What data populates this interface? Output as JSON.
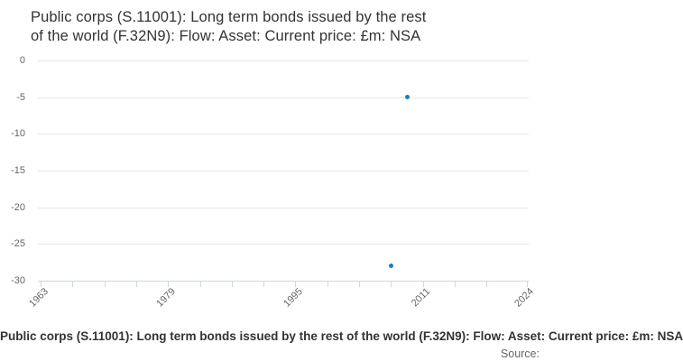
{
  "title_lines": [
    "Public corps (S.11001): Long term bonds issued by the rest",
    "of the world (F.32N9): Flow: Asset: Current price: £m: NSA"
  ],
  "legend": {
    "label": "Public corps (S.11001): Long term bonds issued by the rest of the world (F.32N9): Flow: Asset: Current price: £m: NSA"
  },
  "source": {
    "label": "Source:"
  },
  "colors": {
    "point": "#1380c4",
    "gridline": "#e6e6e6",
    "axis_line": "#ccd6eb",
    "tick": "#ccd6eb",
    "title_text": "#333333",
    "axis_label_text": "#666666",
    "legend_text": "#333333",
    "source_text": "#666666",
    "background": "#ffffff"
  },
  "chart_data": {
    "type": "scatter",
    "title": "Public corps (S.11001): Long term bonds issued by the rest of the world (F.32N9): Flow: Asset: Current price: £m: NSA",
    "xlabel": "",
    "ylabel": "",
    "x_axis": {
      "min": 1963,
      "max": 2024,
      "ticks": [
        1963,
        1967,
        1971,
        1975,
        1979,
        1983,
        1987,
        1991,
        1995,
        1999,
        2003,
        2007,
        2011,
        2015,
        2019,
        2024
      ],
      "labeled_ticks": [
        "1963",
        "1979",
        "1995",
        "2011",
        "2024"
      ],
      "label_rotation_deg": -45
    },
    "y_axis": {
      "min": -30,
      "max": 0,
      "ticks": [
        0,
        -5,
        -10,
        -15,
        -20,
        -25,
        -30
      ]
    },
    "grid": {
      "horizontal": true,
      "vertical": false
    },
    "legend_position": "bottom-center",
    "series": [
      {
        "name": "Public corps (S.11001): Long term bonds issued by the rest of the world (F.32N9): Flow: Asset: Current price: £m: NSA",
        "marker": "circle",
        "points": [
          {
            "x": 2007,
            "y": -28
          },
          {
            "x": 2009,
            "y": -5
          }
        ]
      }
    ]
  }
}
